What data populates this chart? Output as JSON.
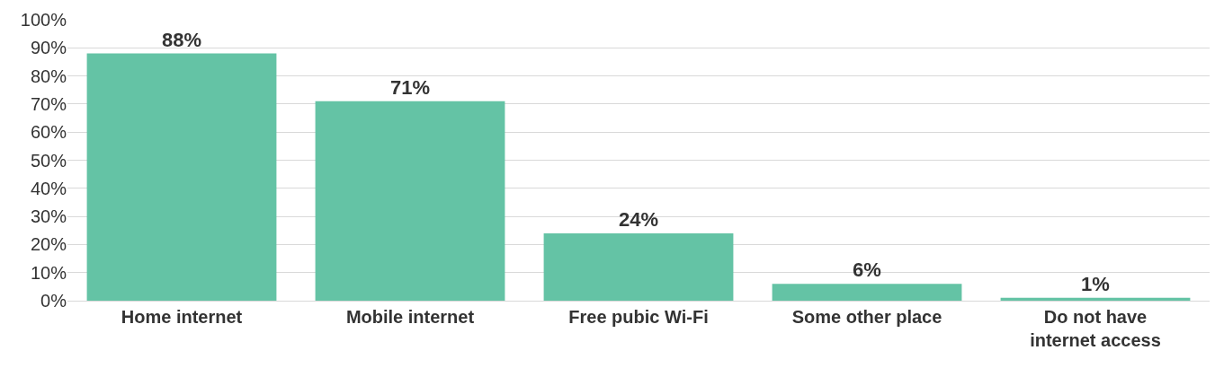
{
  "chart_data": {
    "type": "bar",
    "categories": [
      "Home internet",
      "Mobile internet",
      "Free pubic Wi-Fi",
      "Some other place",
      "Do not have internet access"
    ],
    "values": [
      88,
      71,
      24,
      6,
      1
    ],
    "value_labels": [
      "88%",
      "71%",
      "24%",
      "6%",
      "1%"
    ],
    "color": "#64c3a5",
    "ylim": [
      0,
      100
    ],
    "yticks": [
      {
        "value": 0,
        "label": "0%"
      },
      {
        "value": 10,
        "label": "10%"
      },
      {
        "value": 20,
        "label": "20%"
      },
      {
        "value": 30,
        "label": "30%"
      },
      {
        "value": 40,
        "label": "40%"
      },
      {
        "value": 50,
        "label": "50%"
      },
      {
        "value": 60,
        "label": "60%"
      },
      {
        "value": 70,
        "label": "70%"
      },
      {
        "value": 80,
        "label": "80%"
      },
      {
        "value": 90,
        "label": "90%"
      },
      {
        "value": 100,
        "label": "100%"
      }
    ],
    "grid": "y"
  }
}
